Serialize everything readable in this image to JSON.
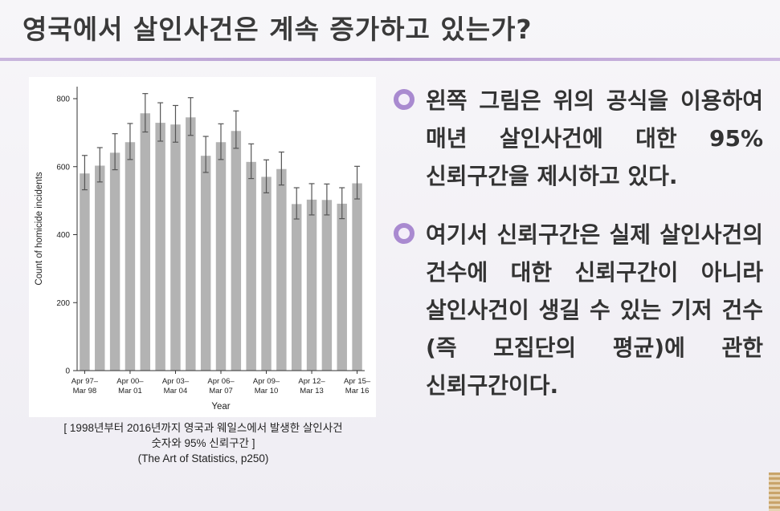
{
  "slide": {
    "title": "영국에서 살인사건은 계속 증가하고 있는가?"
  },
  "bullets": [
    {
      "text": "왼쪽 그림은 위의 공식을 이용하여 매년 살인사건에 대한 95% 신뢰구간을 제시하고 있다."
    },
    {
      "text": "여기서 신뢰구간은 실제 살인사건의 건수에 대한 신뢰구간이 아니라 살인사건이 생길 수 있는 기저 건수(즉 모집단의 평균)에 관한 신뢰구간이다."
    }
  ],
  "caption": {
    "line1": "[ 1998년부터 2016년까지 영국과 웨일스에서 발생한 살인사건",
    "line2": "숫자와 95% 신뢰구간 ]",
    "line3": "(The Art of Statistics, p250)"
  },
  "chart_data": {
    "type": "bar",
    "xlabel": "Year",
    "ylabel": "Count of homicide incidents",
    "ylim": [
      0,
      800
    ],
    "yticks": [
      0,
      200,
      400,
      600,
      800
    ],
    "grid": false,
    "bar_color": "#b3b3b3",
    "error_bar_color": "#555555",
    "tick_labels": [
      {
        "index": 0,
        "line1": "Apr 97–",
        "line2": "Mar 98"
      },
      {
        "index": 3,
        "line1": "Apr 00–",
        "line2": "Mar 01"
      },
      {
        "index": 6,
        "line1": "Apr 03–",
        "line2": "Mar 04"
      },
      {
        "index": 9,
        "line1": "Apr 06–",
        "line2": "Mar 07"
      },
      {
        "index": 12,
        "line1": "Apr 09–",
        "line2": "Mar 10"
      },
      {
        "index": 15,
        "line1": "Apr 12–",
        "line2": "Mar 13"
      },
      {
        "index": 18,
        "line1": "Apr 15–",
        "line2": "Mar 16"
      }
    ],
    "values": [
      580,
      603,
      641,
      672,
      757,
      729,
      724,
      745,
      632,
      672,
      705,
      614,
      570,
      593,
      490,
      503,
      502,
      491,
      551
    ],
    "ci_low": [
      532,
      555,
      591,
      621,
      702,
      675,
      672,
      692,
      583,
      621,
      654,
      565,
      523,
      546,
      446,
      458,
      458,
      447,
      505
    ],
    "ci_high": [
      633,
      656,
      697,
      727,
      815,
      788,
      780,
      803,
      689,
      726,
      764,
      667,
      620,
      643,
      538,
      550,
      549,
      538,
      601
    ]
  }
}
